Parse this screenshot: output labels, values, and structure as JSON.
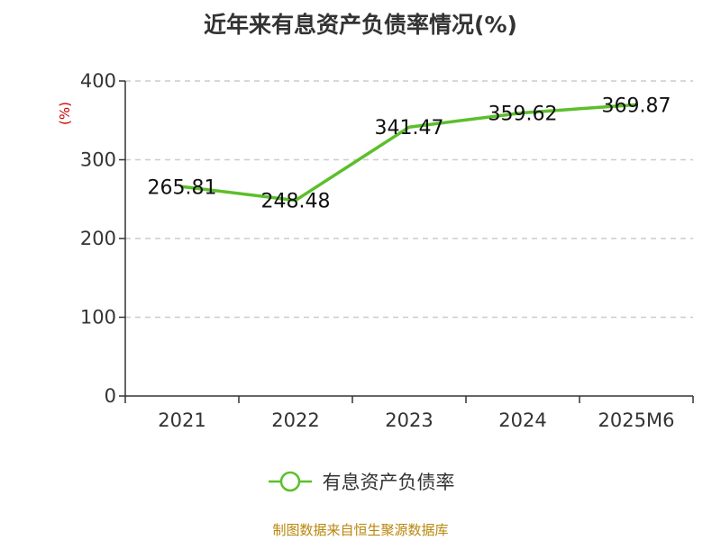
{
  "chart_data": {
    "type": "line",
    "title": "近年来有息资产负债率情况(%)",
    "ylabel": "(%)",
    "categories": [
      "2021",
      "2022",
      "2023",
      "2024",
      "2025M6"
    ],
    "series": [
      {
        "name": "有息资产负债率",
        "values": [
          265.81,
          248.48,
          341.47,
          359.62,
          369.87
        ],
        "color": "#5cbf2a"
      }
    ],
    "data_labels": [
      "265.81",
      "248.48",
      "341.47",
      "359.62",
      "369.87"
    ],
    "ylim": [
      0,
      400
    ],
    "yticks": [
      0,
      100,
      200,
      300,
      400
    ],
    "grid": true,
    "legend": "bottom-center"
  },
  "colors": {
    "axis": "#333333",
    "grid": "#cccccc",
    "ylabel": "#cc0000",
    "line": "#5cbf2a",
    "source": "#b8860b"
  },
  "footer": {
    "source": "制图数据来自恒生聚源数据库"
  }
}
